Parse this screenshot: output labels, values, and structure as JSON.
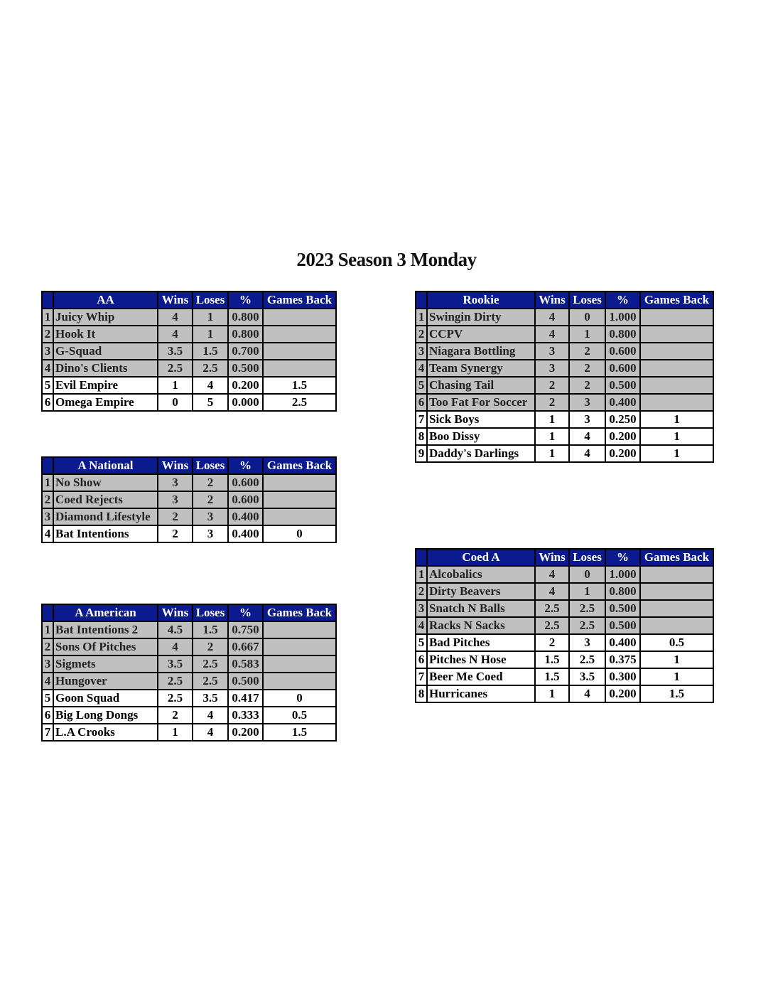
{
  "title": "2023 Season 3 Monday",
  "colors": {
    "header_bg": "#0b1a8f",
    "header_text": "#ffffff",
    "shaded_row": "#c0c0c0"
  },
  "columns": [
    "Wins",
    "Loses",
    "%",
    "Games Back"
  ],
  "tables": [
    {
      "division": "AA",
      "rows": [
        {
          "rank": "1",
          "team": "Juicy Whip",
          "wins": "4",
          "loses": "1",
          "pct": "0.800",
          "gb": "",
          "shaded": true
        },
        {
          "rank": "2",
          "team": "Hook It",
          "wins": "4",
          "loses": "1",
          "pct": "0.800",
          "gb": "",
          "shaded": true
        },
        {
          "rank": "3",
          "team": "G-Squad",
          "wins": "3.5",
          "loses": "1.5",
          "pct": "0.700",
          "gb": "",
          "shaded": true
        },
        {
          "rank": "4",
          "team": "Dino's Clients",
          "wins": "2.5",
          "loses": "2.5",
          "pct": "0.500",
          "gb": "",
          "shaded": true
        },
        {
          "rank": "5",
          "team": "Evil Empire",
          "wins": "1",
          "loses": "4",
          "pct": "0.200",
          "gb": "1.5",
          "shaded": false
        },
        {
          "rank": "6",
          "team": "Omega Empire",
          "wins": "0",
          "loses": "5",
          "pct": "0.000",
          "gb": "2.5",
          "shaded": false
        }
      ]
    },
    {
      "division": "A National",
      "rows": [
        {
          "rank": "1",
          "team": "No Show",
          "wins": "3",
          "loses": "2",
          "pct": "0.600",
          "gb": "",
          "shaded": true
        },
        {
          "rank": "2",
          "team": "Coed Rejects",
          "wins": "3",
          "loses": "2",
          "pct": "0.600",
          "gb": "",
          "shaded": true
        },
        {
          "rank": "3",
          "team": "Diamond Lifestyle",
          "wins": "2",
          "loses": "3",
          "pct": "0.400",
          "gb": "",
          "shaded": true
        },
        {
          "rank": "4",
          "team": "Bat Intentions",
          "wins": "2",
          "loses": "3",
          "pct": "0.400",
          "gb": "0",
          "shaded": false
        }
      ]
    },
    {
      "division": "A American",
      "rows": [
        {
          "rank": "1",
          "team": "Bat Intentions 2",
          "wins": "4.5",
          "loses": "1.5",
          "pct": "0.750",
          "gb": "",
          "shaded": true
        },
        {
          "rank": "2",
          "team": "Sons Of Pitches",
          "wins": "4",
          "loses": "2",
          "pct": "0.667",
          "gb": "",
          "shaded": true
        },
        {
          "rank": "3",
          "team": "Sigmets",
          "wins": "3.5",
          "loses": "2.5",
          "pct": "0.583",
          "gb": "",
          "shaded": true
        },
        {
          "rank": "4",
          "team": "Hungover",
          "wins": "2.5",
          "loses": "2.5",
          "pct": "0.500",
          "gb": "",
          "shaded": true
        },
        {
          "rank": "5",
          "team": "Goon Squad",
          "wins": "2.5",
          "loses": "3.5",
          "pct": "0.417",
          "gb": "0",
          "shaded": false
        },
        {
          "rank": "6",
          "team": "Big Long Dongs",
          "wins": "2",
          "loses": "4",
          "pct": "0.333",
          "gb": "0.5",
          "shaded": false
        },
        {
          "rank": "7",
          "team": "L.A Crooks",
          "wins": "1",
          "loses": "4",
          "pct": "0.200",
          "gb": "1.5",
          "shaded": false
        }
      ]
    },
    {
      "division": "Rookie",
      "rows": [
        {
          "rank": "1",
          "team": "Swingin Dirty",
          "wins": "4",
          "loses": "0",
          "pct": "1.000",
          "gb": "",
          "shaded": true
        },
        {
          "rank": "2",
          "team": "CCPV",
          "wins": "4",
          "loses": "1",
          "pct": "0.800",
          "gb": "",
          "shaded": true
        },
        {
          "rank": "3",
          "team": "Niagara Bottling",
          "wins": "3",
          "loses": "2",
          "pct": "0.600",
          "gb": "",
          "shaded": true
        },
        {
          "rank": "4",
          "team": "Team Synergy",
          "wins": "3",
          "loses": "2",
          "pct": "0.600",
          "gb": "",
          "shaded": true
        },
        {
          "rank": "5",
          "team": "Chasing Tail",
          "wins": "2",
          "loses": "2",
          "pct": "0.500",
          "gb": "",
          "shaded": true
        },
        {
          "rank": "6",
          "team": "Too Fat For Soccer",
          "wins": "2",
          "loses": "3",
          "pct": "0.400",
          "gb": "",
          "shaded": true
        },
        {
          "rank": "7",
          "team": "Sick Boys",
          "wins": "1",
          "loses": "3",
          "pct": "0.250",
          "gb": "1",
          "shaded": false
        },
        {
          "rank": "8",
          "team": "Boo Dissy",
          "wins": "1",
          "loses": "4",
          "pct": "0.200",
          "gb": "1",
          "shaded": false
        },
        {
          "rank": "9",
          "team": "Daddy's Darlings",
          "wins": "1",
          "loses": "4",
          "pct": "0.200",
          "gb": "1",
          "shaded": false
        }
      ]
    },
    {
      "division": "Coed A",
      "rows": [
        {
          "rank": "1",
          "team": "Alcobalics",
          "wins": "4",
          "loses": "0",
          "pct": "1.000",
          "gb": "",
          "shaded": true
        },
        {
          "rank": "2",
          "team": "Dirty Beavers",
          "wins": "4",
          "loses": "1",
          "pct": "0.800",
          "gb": "",
          "shaded": true
        },
        {
          "rank": "3",
          "team": "Snatch N Balls",
          "wins": "2.5",
          "loses": "2.5",
          "pct": "0.500",
          "gb": "",
          "shaded": true
        },
        {
          "rank": "4",
          "team": "Racks N Sacks",
          "wins": "2.5",
          "loses": "2.5",
          "pct": "0.500",
          "gb": "",
          "shaded": true
        },
        {
          "rank": "5",
          "team": "Bad Pitches",
          "wins": "2",
          "loses": "3",
          "pct": "0.400",
          "gb": "0.5",
          "shaded": false
        },
        {
          "rank": "6",
          "team": "Pitches N Hose",
          "wins": "1.5",
          "loses": "2.5",
          "pct": "0.375",
          "gb": "1",
          "shaded": false
        },
        {
          "rank": "7",
          "team": "Beer Me Coed",
          "wins": "1.5",
          "loses": "3.5",
          "pct": "0.300",
          "gb": "1",
          "shaded": false
        },
        {
          "rank": "8",
          "team": "Hurricanes",
          "wins": "1",
          "loses": "4",
          "pct": "0.200",
          "gb": "1.5",
          "shaded": false
        }
      ]
    }
  ]
}
